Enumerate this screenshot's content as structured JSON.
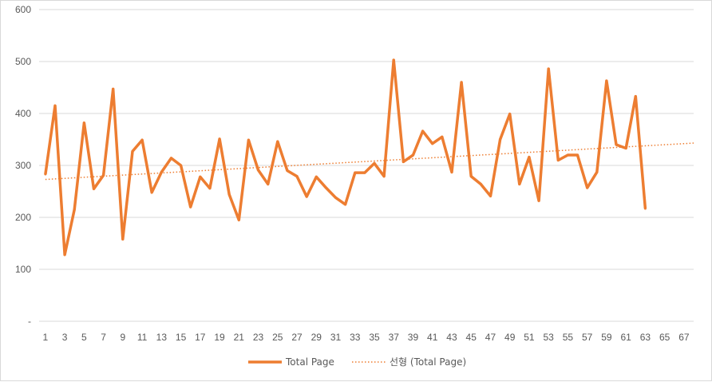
{
  "chart_data": {
    "type": "line",
    "title": "",
    "xlabel": "",
    "ylabel": "",
    "ylim": [
      0,
      600
    ],
    "y_ticks": [
      "-",
      "100",
      "200",
      "300",
      "400",
      "500",
      "600"
    ],
    "x_ticks": [
      "1",
      "3",
      "5",
      "7",
      "9",
      "11",
      "13",
      "15",
      "17",
      "19",
      "21",
      "23",
      "25",
      "27",
      "29",
      "31",
      "33",
      "35",
      "37",
      "39",
      "41",
      "43",
      "45",
      "47",
      "49",
      "51",
      "53",
      "55",
      "57",
      "59",
      "61",
      "63",
      "65",
      "67"
    ],
    "x_max": 68,
    "grid": true,
    "legend_position": "bottom",
    "series": [
      {
        "name": "Total Page",
        "color": "#ED7D31",
        "style": "solid",
        "x": [
          1,
          2,
          3,
          4,
          5,
          6,
          7,
          8,
          9,
          10,
          11,
          12,
          13,
          14,
          15,
          16,
          17,
          18,
          19,
          20,
          21,
          22,
          23,
          24,
          25,
          26,
          27,
          28,
          29,
          30,
          31,
          32,
          33,
          34,
          35,
          36,
          37,
          38,
          39,
          40,
          41,
          42,
          43,
          44,
          45,
          46,
          47,
          48,
          49,
          50,
          51,
          52,
          53,
          54,
          55,
          56,
          57,
          58,
          59,
          60,
          61,
          62,
          63
        ],
        "values": [
          283,
          415,
          128,
          215,
          382,
          255,
          281,
          447,
          158,
          327,
          349,
          248,
          287,
          314,
          300,
          220,
          278,
          256,
          351,
          244,
          195,
          349,
          291,
          264,
          346,
          290,
          279,
          240,
          278,
          257,
          238,
          225,
          286,
          286,
          304,
          279,
          503,
          307,
          320,
          366,
          342,
          355,
          287,
          460,
          279,
          264,
          241,
          350,
          399,
          264,
          316,
          232,
          486,
          310,
          320,
          320,
          257,
          287,
          463,
          340,
          333,
          433,
          217
        ]
      },
      {
        "name": "선형 (Total Page)",
        "color": "#ED7D31",
        "style": "dotted",
        "type": "linear-trendline",
        "start": 273,
        "end": 343
      }
    ],
    "legend": [
      "Total Page",
      "선형 (Total Page)"
    ]
  }
}
